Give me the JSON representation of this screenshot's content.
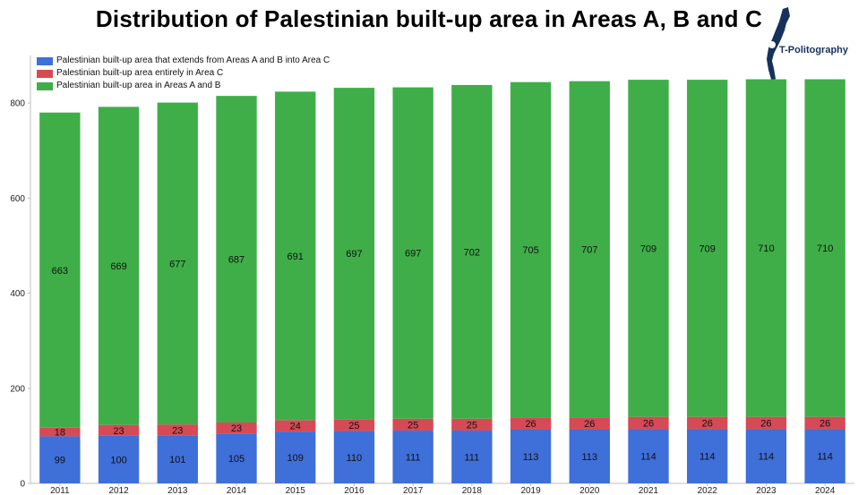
{
  "title": "Distribution of Palestinian built-up area in Areas A, B and C",
  "logo": {
    "text": "T-Politography",
    "icon": "israel-map-emblem-icon"
  },
  "chart_data": {
    "type": "bar",
    "stacked": true,
    "title": "Distribution of Palestinian built-up area in Areas A, B and C",
    "categories": [
      "2011",
      "2012",
      "2013",
      "2014",
      "2015",
      "2016",
      "2017",
      "2018",
      "2019",
      "2020",
      "2021",
      "2022",
      "2023",
      "2024"
    ],
    "series": [
      {
        "name": "Palestinian built-up area that extends from Areas A and B into Area C",
        "color": "#3f6fd8",
        "values": [
          99,
          100,
          101,
          105,
          109,
          110,
          111,
          111,
          113,
          113,
          114,
          114,
          114,
          114
        ]
      },
      {
        "name": "Palestinian built-up area entirely in Area C",
        "color": "#d64a55",
        "values": [
          18,
          23,
          23,
          23,
          24,
          25,
          25,
          25,
          26,
          26,
          26,
          26,
          26,
          26
        ]
      },
      {
        "name": "Palestinian built-up area in Areas A and B",
        "color": "#3fae49",
        "values": [
          663,
          669,
          677,
          687,
          691,
          697,
          697,
          702,
          705,
          707,
          709,
          709,
          710,
          710
        ]
      }
    ],
    "legend_order": [
      0,
      1,
      2
    ],
    "yticks": [
      "0",
      "200",
      "400",
      "600",
      "800"
    ],
    "ylim": [
      0,
      900
    ],
    "legend_position": "top-left",
    "grid": false
  }
}
